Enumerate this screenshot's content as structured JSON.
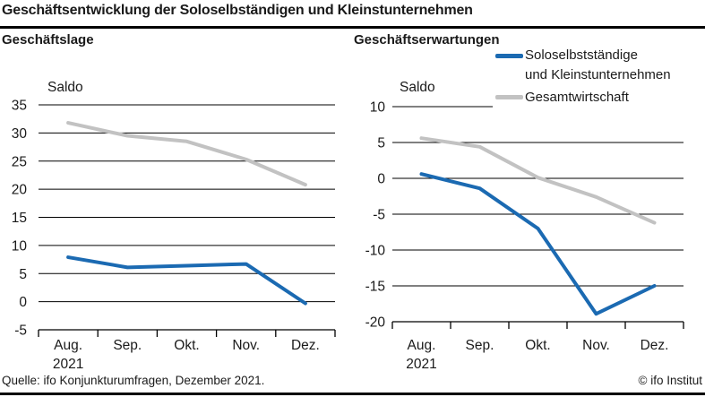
{
  "title": "Geschäftsentwicklung der Soloselbständigen und Kleinstunternehmen",
  "source": "Quelle: ifo Konjunkturumfragen, Dezember 2021.",
  "copyright": "© ifo Institut",
  "legend": {
    "series1_label_line1": "Soloselbstständige",
    "series1_label_line2": "und Kleinstunternehmen",
    "series2_label": "Gesamtwirtschaft"
  },
  "colors": {
    "series1": "#1b6ab2",
    "series2": "#c2c2c2",
    "text": "#1a1a1a",
    "axis": "#000000"
  },
  "chart_data": [
    {
      "type": "line",
      "title": "Geschäftslage",
      "axis_label": "Saldo",
      "categories": [
        "Aug.",
        "Sep.",
        "Okt.",
        "Nov.",
        "Dez."
      ],
      "x_sub_label": "2021",
      "ylim": [
        -5,
        35
      ],
      "yticks": [
        35,
        30,
        25,
        20,
        15,
        10,
        5,
        0,
        -5
      ],
      "grid": true,
      "legend_position": "none",
      "series": [
        {
          "name": "Soloselbstständige und Kleinstunternehmen",
          "color_key": "series1",
          "values": [
            7.9,
            6.1,
            6.4,
            6.7,
            -0.3
          ]
        },
        {
          "name": "Gesamtwirtschaft",
          "color_key": "series2",
          "values": [
            31.8,
            29.5,
            28.5,
            25.3,
            20.8
          ]
        }
      ]
    },
    {
      "type": "line",
      "title": "Geschäftserwartungen",
      "axis_label": "Saldo",
      "categories": [
        "Aug.",
        "Sep.",
        "Okt.",
        "Nov.",
        "Dez."
      ],
      "x_sub_label": "2021",
      "ylim": [
        -20,
        10
      ],
      "yticks": [
        10,
        5,
        0,
        -5,
        -10,
        -15,
        -20
      ],
      "grid": true,
      "legend_position": "top-right",
      "series": [
        {
          "name": "Soloselbstständige und Kleinstunternehmen",
          "color_key": "series1",
          "values": [
            0.6,
            -1.4,
            -7.0,
            -18.9,
            -15.0
          ]
        },
        {
          "name": "Gesamtwirtschaft",
          "color_key": "series2",
          "values": [
            5.6,
            4.4,
            0.1,
            -2.6,
            -6.2
          ]
        }
      ]
    }
  ]
}
